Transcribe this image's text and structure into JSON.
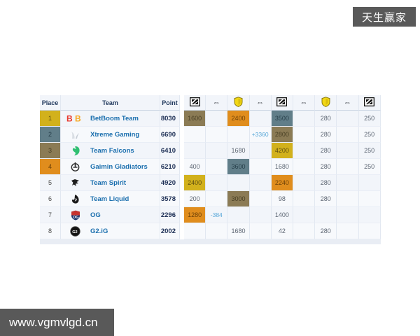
{
  "page": {
    "watermark_top": "天生赢家",
    "watermark_bottom": "www.vgmvlgd.cn"
  },
  "colors": {
    "gold": "#d2b11c",
    "teal": "#617e89",
    "khaki": "#8b7b55",
    "orange": "#e08d1d",
    "delta_text": "#57a7d8",
    "team_link": "#1b6fae",
    "badge_bg": "#595959"
  },
  "table": {
    "headers": {
      "place": "Place",
      "team": "Team",
      "point": "Point"
    },
    "icon_columns": [
      "bracket",
      "swap",
      "shield",
      "swap",
      "bracket",
      "swap",
      "shield",
      "swap",
      "bracket"
    ],
    "rows": [
      {
        "place": "1",
        "place_color": "gold",
        "team": "BetBoom Team",
        "logo": "betboom",
        "point": "8030",
        "cells": [
          {
            "v": "1600",
            "c": "khaki"
          },
          {},
          {
            "v": "2400",
            "c": "orange"
          },
          {},
          {
            "v": "3500",
            "c": "teal"
          },
          {},
          {
            "v": "280"
          },
          {},
          {
            "v": "250"
          }
        ]
      },
      {
        "place": "2",
        "place_color": "teal",
        "team": "Xtreme Gaming",
        "logo": "xtreme",
        "point": "6690",
        "cells": [
          {},
          {},
          {},
          {
            "v": "+3360",
            "t": "delta"
          },
          {
            "v": "2800",
            "c": "khaki"
          },
          {},
          {
            "v": "280"
          },
          {},
          {
            "v": "250"
          }
        ]
      },
      {
        "place": "3",
        "place_color": "khaki",
        "team": "Team Falcons",
        "logo": "falcons",
        "point": "6410",
        "cells": [
          {},
          {},
          {
            "v": "1680"
          },
          {},
          {
            "v": "4200",
            "c": "gold"
          },
          {},
          {
            "v": "280"
          },
          {},
          {
            "v": "250"
          }
        ]
      },
      {
        "place": "4",
        "place_color": "orange",
        "team": "Gaimin Gladiators",
        "logo": "gaimin",
        "point": "6210",
        "cells": [
          {
            "v": "400"
          },
          {},
          {
            "v": "3600",
            "c": "teal"
          },
          {},
          {
            "v": "1680"
          },
          {},
          {
            "v": "280"
          },
          {},
          {
            "v": "250"
          }
        ]
      },
      {
        "place": "5",
        "place_color": "",
        "team": "Team Spirit",
        "logo": "spirit",
        "point": "4920",
        "cells": [
          {
            "v": "2400",
            "c": "gold"
          },
          {},
          {},
          {},
          {
            "v": "2240",
            "c": "orange"
          },
          {},
          {
            "v": "280"
          },
          {},
          {}
        ]
      },
      {
        "place": "6",
        "place_color": "",
        "team": "Team Liquid",
        "logo": "liquid",
        "point": "3578",
        "cells": [
          {
            "v": "200"
          },
          {},
          {
            "v": "3000",
            "c": "khaki"
          },
          {},
          {
            "v": "98"
          },
          {},
          {
            "v": "280"
          },
          {},
          {}
        ]
      },
      {
        "place": "7",
        "place_color": "",
        "team": "OG",
        "logo": "og",
        "point": "2296",
        "cells": [
          {
            "v": "1280",
            "c": "orange"
          },
          {
            "v": "-384",
            "t": "delta"
          },
          {},
          {},
          {
            "v": "1400"
          },
          {},
          {},
          {},
          {}
        ]
      },
      {
        "place": "8",
        "place_color": "",
        "team": "G2.iG",
        "logo": "g2ig",
        "point": "2002",
        "cells": [
          {},
          {},
          {
            "v": "1680"
          },
          {},
          {
            "v": "42"
          },
          {},
          {
            "v": "280"
          },
          {},
          {}
        ]
      }
    ]
  }
}
